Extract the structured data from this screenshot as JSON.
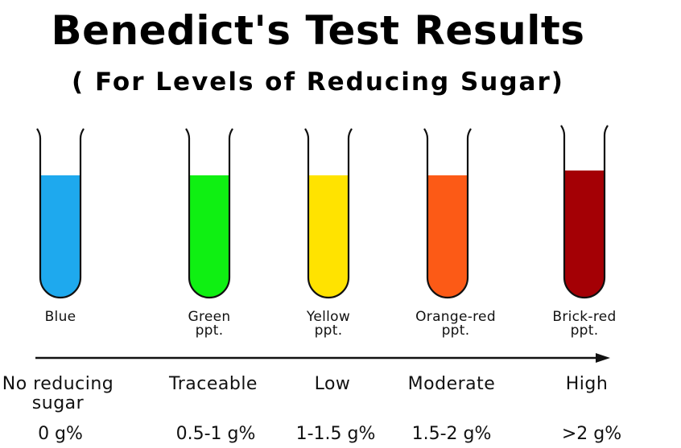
{
  "title": "Benedict's Test Results",
  "subtitle": "( For Levels of Reducing Sugar)",
  "tubes": [
    {
      "color_name": "Blue",
      "color_line2": "",
      "fill": "#1ea9ee",
      "level_text": "No reducing",
      "level_line2": "sugar",
      "amount": "0 g%"
    },
    {
      "color_name": "Green",
      "color_line2": "ppt.",
      "fill": "#0ff012",
      "level_text": "Traceable",
      "level_line2": "",
      "amount": "0.5-1 g%"
    },
    {
      "color_name": "Yellow",
      "color_line2": "ppt.",
      "fill": "#ffe300",
      "level_text": "Low",
      "level_line2": "",
      "amount": "1-1.5 g%"
    },
    {
      "color_name": "Orange-red",
      "color_line2": "ppt.",
      "fill": "#fc5a16",
      "level_text": "Moderate",
      "level_line2": "",
      "amount": "1.5-2 g%"
    },
    {
      "color_name": "Brick-red",
      "color_line2": "ppt.",
      "fill": "#a40005",
      "level_text": "High",
      "level_line2": "",
      "amount": ">2 g%"
    }
  ]
}
